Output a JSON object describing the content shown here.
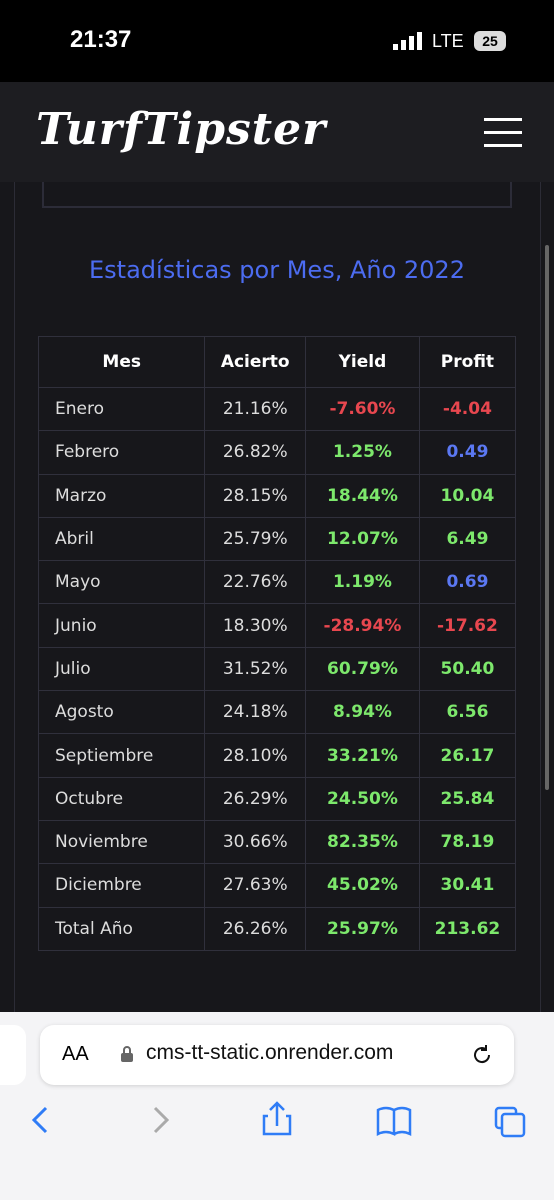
{
  "status_bar": {
    "time": "21:37",
    "network": "LTE",
    "battery": "25"
  },
  "header": {
    "logo": "TurfTipster"
  },
  "stats": {
    "title": "Estadísticas por Mes, Año 2022",
    "table": {
      "columns": [
        "Mes",
        "Acierto",
        "Yield",
        "Profit"
      ],
      "rows": [
        [
          "Enero",
          "21.16%",
          "-7.60%",
          "-4.04"
        ],
        [
          "Febrero",
          "26.82%",
          "1.25%",
          "0.49"
        ],
        [
          "Marzo",
          "28.15%",
          "18.44%",
          "10.04"
        ],
        [
          "Abril",
          "25.79%",
          "12.07%",
          "6.49"
        ],
        [
          "Mayo",
          "22.76%",
          "1.19%",
          "0.69"
        ],
        [
          "Junio",
          "18.30%",
          "-28.94%",
          "-17.62"
        ],
        [
          "Julio",
          "31.52%",
          "60.79%",
          "50.40"
        ],
        [
          "Agosto",
          "24.18%",
          "8.94%",
          "6.56"
        ],
        [
          "Septiembre",
          "28.10%",
          "33.21%",
          "26.17"
        ],
        [
          "Octubre",
          "26.29%",
          "24.50%",
          "25.84"
        ],
        [
          "Noviembre",
          "30.66%",
          "82.35%",
          "78.19"
        ],
        [
          "Diciembre",
          "27.63%",
          "45.02%",
          "30.41"
        ],
        [
          "Total Año",
          "26.26%",
          "25.97%",
          "213.62"
        ]
      ],
      "value_colors": [
        [
          "#e8474f",
          "#e8474f"
        ],
        [
          "#7de86c",
          "#5b78f2"
        ],
        [
          "#7de86c",
          "#7de86c"
        ],
        [
          "#7de86c",
          "#7de86c"
        ],
        [
          "#7de86c",
          "#5b78f2"
        ],
        [
          "#e8474f",
          "#e8474f"
        ],
        [
          "#7de86c",
          "#7de86c"
        ],
        [
          "#7de86c",
          "#7de86c"
        ],
        [
          "#7de86c",
          "#7de86c"
        ],
        [
          "#7de86c",
          "#7de86c"
        ],
        [
          "#7de86c",
          "#7de86c"
        ],
        [
          "#7de86c",
          "#7de86c"
        ],
        [
          "#7de86c",
          "#7de86c"
        ]
      ]
    }
  },
  "browser": {
    "text_size": "AA",
    "url": "cms-tt-static.onrender.com"
  }
}
